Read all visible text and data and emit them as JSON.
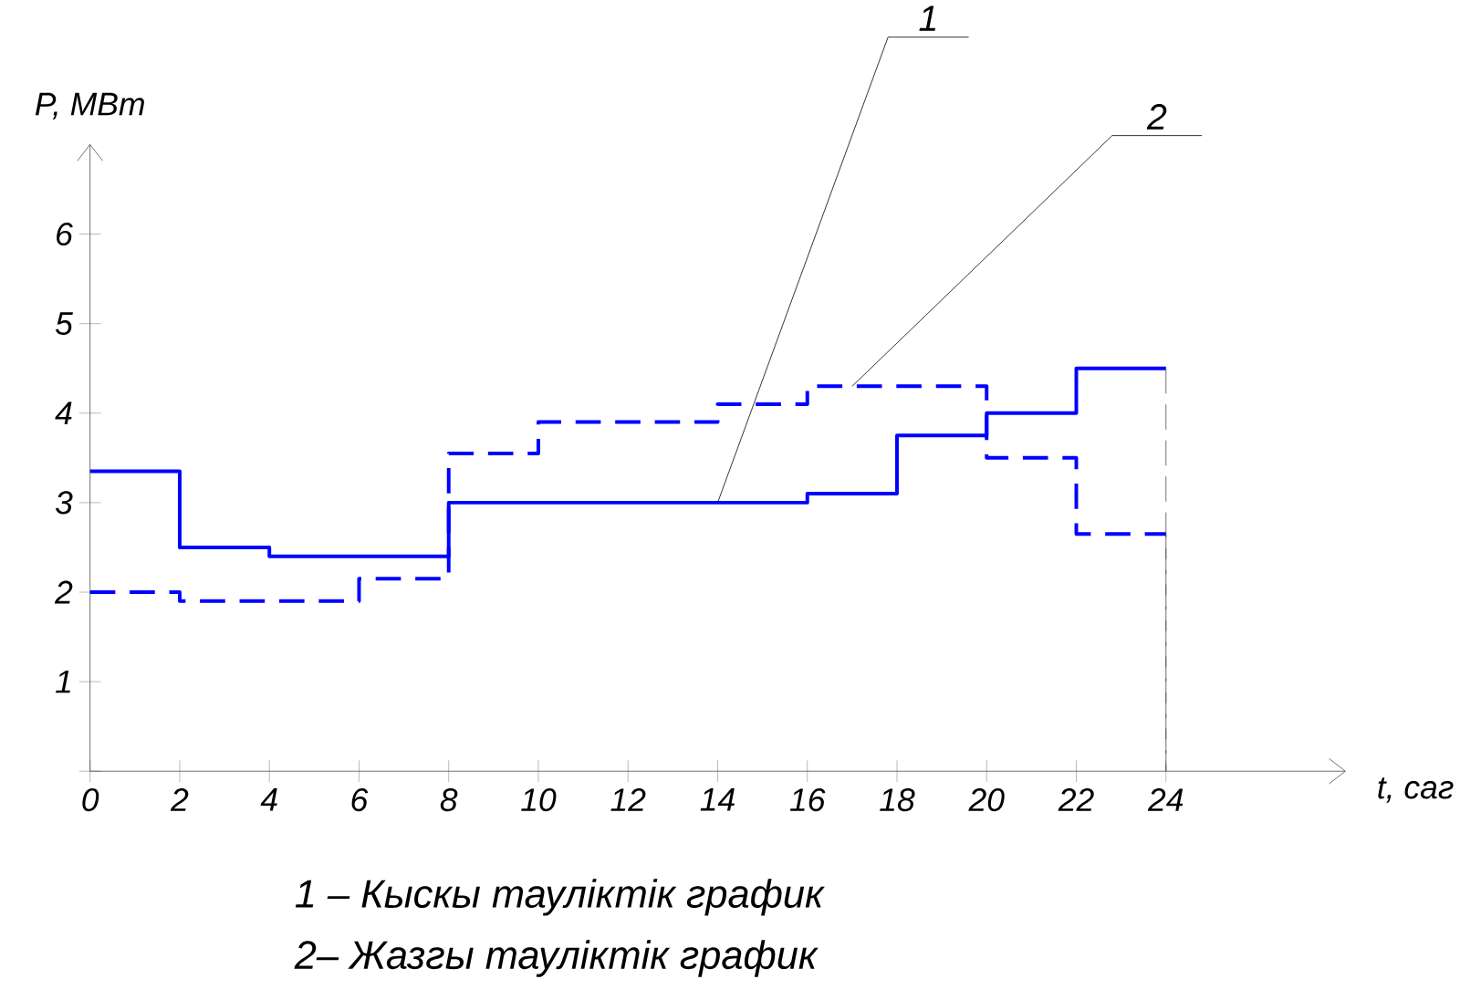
{
  "chart_data": {
    "type": "step",
    "xlabel": "t, саг",
    "ylabel": "P, МВт",
    "xlim": [
      0,
      28
    ],
    "ylim": [
      0,
      7
    ],
    "xticks": [
      0,
      2,
      4,
      6,
      8,
      10,
      12,
      14,
      16,
      18,
      20,
      22,
      24
    ],
    "yticks": [
      {
        "value": 0,
        "label": null
      },
      1,
      2,
      3,
      4,
      5,
      6
    ],
    "series": [
      {
        "color": "#0000ff",
        "line_style": "solid",
        "x": [
          0,
          2,
          4,
          8,
          16,
          18,
          20,
          22,
          24
        ],
        "values": [
          3.35,
          2.5,
          2.4,
          3.0,
          3.1,
          3.75,
          4.0,
          4.5,
          4.5
        ]
      },
      {
        "color": "#0000ff",
        "line_style": "dashed",
        "x": [
          0,
          2,
          6,
          8,
          10,
          14,
          16,
          20,
          22,
          24
        ],
        "values": [
          2.0,
          1.9,
          2.15,
          3.55,
          3.9,
          4.1,
          4.3,
          3.5,
          2.65,
          2.65
        ]
      }
    ],
    "annotations": [
      {
        "text": "1",
        "x": 14,
        "y": 3.0
      },
      {
        "text": "2",
        "x": 17,
        "y": 4.3
      },
      "1 – Кыскы тауліктік график",
      "2– Жазгы тауліктік график"
    ]
  }
}
